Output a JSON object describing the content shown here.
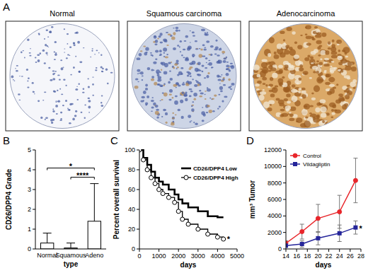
{
  "figure_a": {
    "label": "A",
    "images": [
      {
        "title": "Normal"
      },
      {
        "title": "Squamous carcinoma"
      },
      {
        "title": "Adenocarcinoma"
      }
    ]
  },
  "chart_data": [
    {
      "label": "B",
      "type": "bar",
      "x_label": "type",
      "y_label": "CD26/DPP4 Grade",
      "categories": [
        "Normal",
        "Squamous",
        "Adeno"
      ],
      "values": [
        0.3,
        0.05,
        1.4
      ],
      "errors": [
        0.5,
        0.25,
        1.9
      ],
      "color": "#ffffff",
      "ylim": [
        0,
        5
      ],
      "yticks": [
        0,
        1,
        2,
        3,
        4,
        5
      ],
      "annotations": [
        {
          "text": "*",
          "from": 0,
          "to": 2
        },
        {
          "text": "****",
          "from": 1,
          "to": 2
        }
      ]
    },
    {
      "label": "C",
      "type": "line",
      "x_label": "days",
      "y_label": "Percent overall survival",
      "x": [
        0,
        200,
        400,
        600,
        800,
        1000,
        1200,
        1500,
        1800,
        2000,
        2200,
        2500,
        3000,
        3500,
        4000,
        4300
      ],
      "series": [
        {
          "name": "CD26/DPP4 Low",
          "color": "#000000",
          "line_style": "step",
          "marker": "none",
          "values": [
            100,
            92,
            85,
            78,
            72,
            68,
            65,
            60,
            55,
            50,
            46,
            42,
            38,
            33,
            32,
            32
          ]
        },
        {
          "name": "CD26/DPP4 High",
          "color": "#000000",
          "line_style": "step",
          "marker": "circle",
          "values": [
            100,
            90,
            80,
            72,
            66,
            60,
            56,
            52,
            47,
            38,
            30,
            25,
            20,
            15,
            12,
            10
          ]
        }
      ],
      "xlim": [
        0,
        5000
      ],
      "xticks": [
        0,
        1000,
        2000,
        3000,
        4000,
        5000
      ],
      "ylim": [
        0,
        100
      ],
      "yticks": [
        0,
        20,
        40,
        60,
        80,
        100
      ],
      "legend": "right",
      "annotations": [
        {
          "text": "*",
          "series": 1
        }
      ]
    },
    {
      "label": "D",
      "type": "line",
      "x_label": "days",
      "y_label": "mm³ Tumor",
      "x": [
        14,
        17,
        20,
        24,
        27
      ],
      "series": [
        {
          "name": "Control",
          "color": "#e8262b",
          "marker": "circle",
          "line_style": "solid",
          "values": [
            700,
            2100,
            3700,
            4500,
            8300
          ],
          "errors": [
            300,
            900,
            1700,
            2000,
            2700
          ]
        },
        {
          "name": "Vildagliptin",
          "color": "#25259a",
          "marker": "square",
          "line_style": "solid",
          "values": [
            400,
            600,
            1300,
            1900,
            2600
          ],
          "errors": [
            200,
            400,
            800,
            1000,
            800
          ]
        }
      ],
      "xlim": [
        14,
        28
      ],
      "xticks": [
        14,
        16,
        18,
        20,
        22,
        24,
        26,
        28
      ],
      "ylim": [
        0,
        12000
      ],
      "yticks": [
        0,
        2000,
        4000,
        6000,
        8000,
        10000,
        12000
      ],
      "legend": "top-left",
      "annotations": [
        {
          "text": "*",
          "series": 1
        }
      ]
    }
  ]
}
